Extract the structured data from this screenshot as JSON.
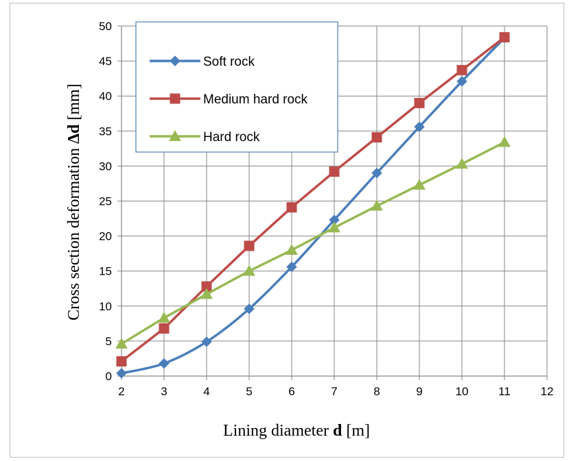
{
  "chart_data": {
    "type": "line",
    "x": [
      2,
      3,
      4,
      5,
      6,
      7,
      8,
      9,
      10,
      11
    ],
    "xlim": [
      2,
      12
    ],
    "ylim": [
      0,
      50
    ],
    "x_ticks": [
      "2",
      "3",
      "4",
      "5",
      "6",
      "7",
      "8",
      "9",
      "10",
      "11",
      "12"
    ],
    "y_ticks": [
      "0",
      "5",
      "10",
      "15",
      "20",
      "25",
      "30",
      "35",
      "40",
      "45",
      "50"
    ],
    "xlabel": {
      "prefix": "Lining diameter ",
      "symbol": "d",
      "suffix": " [m]"
    },
    "ylabel": {
      "prefix": "Cross section deformation ",
      "symbol": "Δd",
      "suffix": " [mm]"
    },
    "grid": true,
    "legend_position": "top-left inside plot",
    "series": [
      {
        "name": "Soft rock",
        "color": "#4a7ebb",
        "marker": "diamond",
        "smooth": true,
        "values": [
          0.4,
          1.8,
          4.9,
          9.6,
          15.6,
          22.3,
          29.0,
          35.6,
          42.1,
          48.3
        ]
      },
      {
        "name": "Medium hard rock",
        "color": "#be4b48",
        "marker": "square",
        "smooth": false,
        "values": [
          2.1,
          6.8,
          12.8,
          18.6,
          24.1,
          29.2,
          34.1,
          39.0,
          43.7,
          48.4
        ]
      },
      {
        "name": "Hard rock",
        "color": "#98b954",
        "marker": "triangle",
        "smooth": false,
        "values": [
          4.6,
          8.3,
          11.7,
          15.0,
          18.0,
          21.2,
          24.3,
          27.3,
          30.3,
          33.4
        ]
      }
    ]
  }
}
